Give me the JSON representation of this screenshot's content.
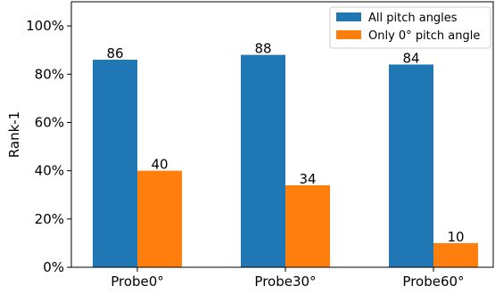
{
  "chart_data": {
    "type": "bar",
    "categories": [
      "Probe0°",
      "Probe30°",
      "Probe60°"
    ],
    "series": [
      {
        "name": "All pitch angles",
        "values": [
          86,
          88,
          84
        ],
        "color": "#1f77b4"
      },
      {
        "name": "Only 0° pitch angle",
        "values": [
          40,
          34,
          10
        ],
        "color": "#ff7f0e"
      }
    ],
    "data_labels": [
      [
        "86",
        "88",
        "84"
      ],
      [
        "40",
        "34",
        "10"
      ]
    ],
    "ylabel": "Rank-1",
    "xlabel": "",
    "ylim": [
      0,
      110
    ],
    "yticks": [
      0,
      20,
      40,
      60,
      80,
      100
    ],
    "ytick_labels": [
      "0%",
      "20%",
      "40%",
      "60%",
      "80%",
      "100%"
    ],
    "legend_position": "top-right",
    "grid": false
  }
}
